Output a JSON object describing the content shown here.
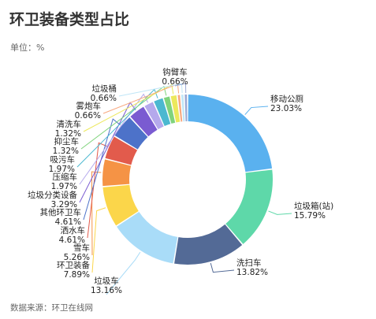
{
  "page": {
    "title": "环卫装备类型占比",
    "unit": "单位：%",
    "source": "数据来源：环卫在线网"
  },
  "chart_data": {
    "type": "pie",
    "title": "环卫装备类型占比",
    "unit": "%",
    "categories": [
      "移动公厕",
      "垃圾箱(站)",
      "洗扫车",
      "垃圾车",
      "环卫装备",
      "雪车",
      "洒水车",
      "其他环卫车",
      "垃圾分类设备",
      "压缩车",
      "吸污车",
      "抑尘车",
      "清洗车",
      "雾炮车",
      "垃圾桶",
      "钩臂车"
    ],
    "values": [
      23.03,
      15.79,
      13.82,
      13.16,
      7.89,
      5.26,
      4.61,
      4.61,
      3.29,
      1.97,
      1.97,
      1.32,
      1.32,
      0.66,
      0.66,
      0.66
    ],
    "value_labels": [
      "23.03%",
      "15.79%",
      "13.82%",
      "13.16%",
      "7.89%",
      "5.26%",
      "4.61%",
      "4.61%",
      "3.29%",
      "1.97%",
      "1.97%",
      "1.32%",
      "1.32%",
      "0.66%",
      "0.66%",
      "0.66%"
    ],
    "colors": [
      "#5ab1ef",
      "#5ed8a9",
      "#536a96",
      "#a9dcf8",
      "#fbd64a",
      "#f59345",
      "#e25b4c",
      "#4d72c9",
      "#7a5bd1",
      "#b5a9ec",
      "#4bb8d0",
      "#7fd37c",
      "#ece85c",
      "#f8a87f",
      "#c0e6f7",
      "#9aa8d4"
    ],
    "legend": "none",
    "style": "donut"
  }
}
